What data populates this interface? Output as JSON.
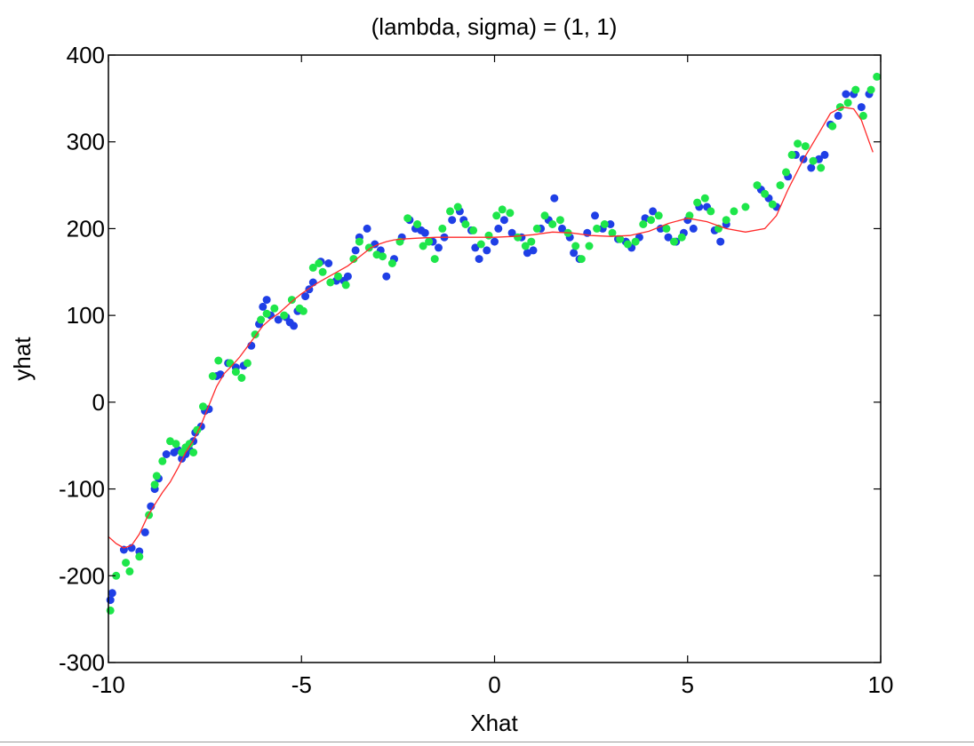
{
  "chart_data": {
    "type": "scatter",
    "title": "(lambda, sigma) = (1, 1)",
    "xlabel": "Xhat",
    "ylabel": "yhat",
    "xlim": [
      -10,
      10
    ],
    "ylim": [
      -300,
      400
    ],
    "xticks": [
      -10,
      -5,
      0,
      5,
      10
    ],
    "yticks": [
      -300,
      -200,
      -100,
      0,
      100,
      200,
      300,
      400
    ],
    "grid": false,
    "legend": "none",
    "series": [
      {
        "kind": "scatter",
        "color": "#1f3fe6",
        "points": [
          [
            -9.95,
            -228
          ],
          [
            -9.9,
            -220
          ],
          [
            -9.6,
            -170
          ],
          [
            -9.4,
            -168
          ],
          [
            -9.2,
            -172
          ],
          [
            -9.05,
            -150
          ],
          [
            -8.9,
            -120
          ],
          [
            -8.8,
            -100
          ],
          [
            -8.7,
            -88
          ],
          [
            -8.5,
            -60
          ],
          [
            -8.3,
            -58
          ],
          [
            -8.2,
            -55
          ],
          [
            -8.1,
            -65
          ],
          [
            -8.0,
            -60
          ],
          [
            -7.9,
            -55
          ],
          [
            -7.8,
            -45
          ],
          [
            -7.75,
            -35
          ],
          [
            -7.6,
            -28
          ],
          [
            -7.5,
            -10
          ],
          [
            -7.4,
            -8
          ],
          [
            -7.2,
            30
          ],
          [
            -7.1,
            32
          ],
          [
            -6.9,
            45
          ],
          [
            -6.7,
            40
          ],
          [
            -6.5,
            42
          ],
          [
            -6.3,
            65
          ],
          [
            -6.1,
            90
          ],
          [
            -6.0,
            110
          ],
          [
            -5.9,
            118
          ],
          [
            -5.8,
            100
          ],
          [
            -5.6,
            95
          ],
          [
            -5.4,
            98
          ],
          [
            -5.3,
            92
          ],
          [
            -5.2,
            88
          ],
          [
            -5.1,
            105
          ],
          [
            -4.9,
            122
          ],
          [
            -4.8,
            130
          ],
          [
            -4.7,
            138
          ],
          [
            -4.5,
            162
          ],
          [
            -4.3,
            160
          ],
          [
            -4.1,
            140
          ],
          [
            -3.9,
            140
          ],
          [
            -3.8,
            145
          ],
          [
            -3.6,
            175
          ],
          [
            -3.5,
            190
          ],
          [
            -3.3,
            200
          ],
          [
            -3.1,
            182
          ],
          [
            -2.95,
            175
          ],
          [
            -2.8,
            145
          ],
          [
            -2.6,
            165
          ],
          [
            -2.4,
            190
          ],
          [
            -2.2,
            210
          ],
          [
            -2.05,
            200
          ],
          [
            -1.9,
            198
          ],
          [
            -1.8,
            195
          ],
          [
            -1.6,
            185
          ],
          [
            -1.45,
            178
          ],
          [
            -1.3,
            190
          ],
          [
            -1.1,
            210
          ],
          [
            -0.9,
            220
          ],
          [
            -0.8,
            210
          ],
          [
            -0.6,
            198
          ],
          [
            -0.5,
            178
          ],
          [
            -0.4,
            165
          ],
          [
            -0.2,
            175
          ],
          [
            0.0,
            185
          ],
          [
            0.1,
            200
          ],
          [
            0.25,
            210
          ],
          [
            0.45,
            195
          ],
          [
            0.7,
            190
          ],
          [
            0.85,
            172
          ],
          [
            1.0,
            175
          ],
          [
            1.2,
            200
          ],
          [
            1.4,
            210
          ],
          [
            1.55,
            235
          ],
          [
            1.75,
            200
          ],
          [
            1.95,
            190
          ],
          [
            2.05,
            172
          ],
          [
            2.2,
            165
          ],
          [
            2.4,
            195
          ],
          [
            2.6,
            215
          ],
          [
            2.8,
            200
          ],
          [
            3.0,
            205
          ],
          [
            3.2,
            188
          ],
          [
            3.4,
            185
          ],
          [
            3.55,
            178
          ],
          [
            3.75,
            190
          ],
          [
            3.9,
            212
          ],
          [
            4.1,
            220
          ],
          [
            4.3,
            200
          ],
          [
            4.5,
            190
          ],
          [
            4.7,
            185
          ],
          [
            4.9,
            195
          ],
          [
            5.0,
            210
          ],
          [
            5.15,
            200
          ],
          [
            5.3,
            225
          ],
          [
            5.5,
            225
          ],
          [
            5.7,
            198
          ],
          [
            5.85,
            185
          ],
          [
            6.0,
            205
          ],
          [
            6.9,
            245
          ],
          [
            7.1,
            235
          ],
          [
            7.3,
            225
          ],
          [
            7.6,
            260
          ],
          [
            7.8,
            285
          ],
          [
            8.0,
            280
          ],
          [
            8.2,
            270
          ],
          [
            8.4,
            280
          ],
          [
            8.55,
            285
          ],
          [
            8.7,
            320
          ],
          [
            8.9,
            330
          ],
          [
            9.1,
            355
          ],
          [
            9.3,
            355
          ],
          [
            9.5,
            340
          ],
          [
            9.7,
            355
          ]
        ]
      },
      {
        "kind": "scatter",
        "color": "#1ee64a",
        "points": [
          [
            -9.95,
            -240
          ],
          [
            -9.8,
            -200
          ],
          [
            -9.55,
            -185
          ],
          [
            -9.45,
            -195
          ],
          [
            -9.2,
            -178
          ],
          [
            -8.95,
            -130
          ],
          [
            -8.8,
            -95
          ],
          [
            -8.75,
            -85
          ],
          [
            -8.6,
            -68
          ],
          [
            -8.4,
            -45
          ],
          [
            -8.25,
            -48
          ],
          [
            -8.1,
            -58
          ],
          [
            -8.0,
            -52
          ],
          [
            -7.9,
            -48
          ],
          [
            -7.8,
            -58
          ],
          [
            -7.7,
            -32
          ],
          [
            -7.55,
            -5
          ],
          [
            -7.3,
            30
          ],
          [
            -7.15,
            48
          ],
          [
            -6.85,
            45
          ],
          [
            -6.7,
            35
          ],
          [
            -6.55,
            28
          ],
          [
            -6.4,
            45
          ],
          [
            -6.2,
            78
          ],
          [
            -6.05,
            95
          ],
          [
            -5.9,
            102
          ],
          [
            -5.7,
            108
          ],
          [
            -5.45,
            100
          ],
          [
            -5.25,
            118
          ],
          [
            -5.05,
            108
          ],
          [
            -4.95,
            105
          ],
          [
            -4.7,
            155
          ],
          [
            -4.55,
            160
          ],
          [
            -4.45,
            150
          ],
          [
            -4.25,
            138
          ],
          [
            -4.05,
            145
          ],
          [
            -3.85,
            135
          ],
          [
            -3.65,
            165
          ],
          [
            -3.5,
            185
          ],
          [
            -3.25,
            178
          ],
          [
            -3.05,
            170
          ],
          [
            -2.9,
            168
          ],
          [
            -2.65,
            160
          ],
          [
            -2.45,
            185
          ],
          [
            -2.25,
            212
          ],
          [
            -2.0,
            205
          ],
          [
            -1.85,
            180
          ],
          [
            -1.7,
            185
          ],
          [
            -1.55,
            165
          ],
          [
            -1.35,
            200
          ],
          [
            -1.15,
            220
          ],
          [
            -0.95,
            225
          ],
          [
            -0.75,
            205
          ],
          [
            -0.55,
            198
          ],
          [
            -0.35,
            182
          ],
          [
            -0.15,
            192
          ],
          [
            0.05,
            215
          ],
          [
            0.2,
            222
          ],
          [
            0.4,
            218
          ],
          [
            0.6,
            190
          ],
          [
            0.8,
            180
          ],
          [
            0.95,
            185
          ],
          [
            1.1,
            200
          ],
          [
            1.3,
            215
          ],
          [
            1.5,
            205
          ],
          [
            1.7,
            210
          ],
          [
            1.9,
            195
          ],
          [
            2.1,
            180
          ],
          [
            2.25,
            165
          ],
          [
            2.45,
            180
          ],
          [
            2.65,
            200
          ],
          [
            2.85,
            205
          ],
          [
            3.05,
            195
          ],
          [
            3.25,
            188
          ],
          [
            3.45,
            182
          ],
          [
            3.65,
            185
          ],
          [
            3.85,
            205
          ],
          [
            4.05,
            210
          ],
          [
            4.25,
            215
          ],
          [
            4.45,
            200
          ],
          [
            4.65,
            185
          ],
          [
            4.85,
            190
          ],
          [
            5.05,
            215
          ],
          [
            5.25,
            230
          ],
          [
            5.45,
            235
          ],
          [
            5.6,
            220
          ],
          [
            5.8,
            200
          ],
          [
            6.0,
            210
          ],
          [
            6.2,
            220
          ],
          [
            6.5,
            225
          ],
          [
            6.8,
            250
          ],
          [
            7.0,
            240
          ],
          [
            7.2,
            228
          ],
          [
            7.4,
            250
          ],
          [
            7.55,
            265
          ],
          [
            7.7,
            285
          ],
          [
            7.85,
            298
          ],
          [
            8.05,
            295
          ],
          [
            8.25,
            278
          ],
          [
            8.45,
            270
          ],
          [
            8.75,
            318
          ],
          [
            8.95,
            340
          ],
          [
            9.15,
            345
          ],
          [
            9.35,
            360
          ],
          [
            9.55,
            330
          ],
          [
            9.75,
            360
          ],
          [
            9.9,
            375
          ]
        ]
      },
      {
        "kind": "line",
        "color": "#ff2a2a",
        "points": [
          [
            -10.0,
            -155
          ],
          [
            -9.8,
            -163
          ],
          [
            -9.6,
            -168
          ],
          [
            -9.4,
            -165
          ],
          [
            -9.2,
            -152
          ],
          [
            -9.0,
            -133
          ],
          [
            -8.8,
            -118
          ],
          [
            -8.6,
            -104
          ],
          [
            -8.4,
            -92
          ],
          [
            -8.2,
            -76
          ],
          [
            -8.0,
            -58
          ],
          [
            -7.8,
            -44
          ],
          [
            -7.6,
            -26
          ],
          [
            -7.4,
            -4
          ],
          [
            -7.2,
            18
          ],
          [
            -7.0,
            33
          ],
          [
            -6.8,
            42
          ],
          [
            -6.6,
            52
          ],
          [
            -6.4,
            64
          ],
          [
            -6.2,
            76
          ],
          [
            -6.0,
            88
          ],
          [
            -5.8,
            96
          ],
          [
            -5.6,
            102
          ],
          [
            -5.4,
            110
          ],
          [
            -5.2,
            118
          ],
          [
            -5.0,
            125
          ],
          [
            -4.8,
            131
          ],
          [
            -4.6,
            137
          ],
          [
            -4.4,
            142
          ],
          [
            -4.2,
            147
          ],
          [
            -4.0,
            152
          ],
          [
            -3.8,
            157
          ],
          [
            -3.6,
            164
          ],
          [
            -3.4,
            171
          ],
          [
            -3.2,
            178
          ],
          [
            -3.0,
            182
          ],
          [
            -2.8,
            185
          ],
          [
            -2.6,
            187
          ],
          [
            -2.4,
            188
          ],
          [
            -2.0,
            189
          ],
          [
            -1.5,
            190
          ],
          [
            -1.0,
            190
          ],
          [
            -0.5,
            190
          ],
          [
            0.0,
            190
          ],
          [
            0.5,
            191
          ],
          [
            1.0,
            193
          ],
          [
            1.5,
            196
          ],
          [
            2.0,
            195
          ],
          [
            2.5,
            192
          ],
          [
            3.0,
            191
          ],
          [
            3.5,
            192
          ],
          [
            4.0,
            197
          ],
          [
            4.5,
            206
          ],
          [
            5.0,
            212
          ],
          [
            5.5,
            208
          ],
          [
            6.0,
            200
          ],
          [
            6.5,
            196
          ],
          [
            7.0,
            200
          ],
          [
            7.3,
            215
          ],
          [
            7.6,
            245
          ],
          [
            8.0,
            280
          ],
          [
            8.4,
            310
          ],
          [
            8.7,
            333
          ],
          [
            9.0,
            340
          ],
          [
            9.3,
            338
          ],
          [
            9.5,
            325
          ],
          [
            9.7,
            300
          ],
          [
            9.8,
            288
          ]
        ]
      }
    ]
  }
}
